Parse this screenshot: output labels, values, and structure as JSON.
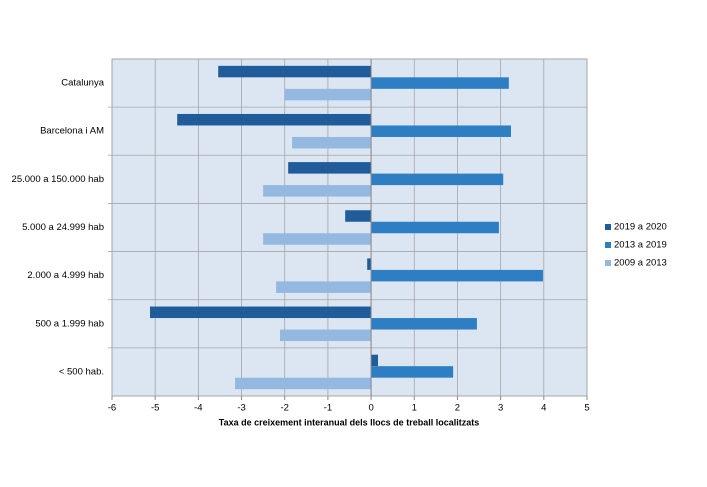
{
  "chart_data": {
    "type": "bar",
    "orientation": "horizontal",
    "x_label": "Taxa de creixement interanual dels llocs de treball localitzats",
    "categories": [
      "Catalunya",
      "Barcelona i AM",
      "25.000 a 150.000 hab",
      "5.000 a 24.999 hab",
      "2.000 a 4.999 hab",
      "500 a 1.999 hab",
      "< 500 hab."
    ],
    "series": [
      {
        "name": "2019 a 2020",
        "color": "#1f5c99",
        "values": [
          -3.54,
          -4.49,
          -1.92,
          -0.6,
          -0.09,
          -5.12,
          0.16
        ]
      },
      {
        "name": "2013 a 2019",
        "color": "#2e7ec4",
        "values": [
          3.19,
          3.24,
          3.06,
          2.96,
          3.98,
          2.45,
          1.9
        ]
      },
      {
        "name": "2009 a 2013",
        "color": "#95b8e0",
        "values": [
          -2.01,
          -1.83,
          -2.5,
          -2.5,
          -2.2,
          -2.11,
          -3.15
        ]
      }
    ],
    "xlim": [
      -6,
      5
    ],
    "xticks": [
      -6,
      -5,
      -4,
      -3,
      -2,
      -1,
      0,
      1,
      2,
      3,
      4,
      5
    ],
    "grid": true,
    "legend": "right"
  }
}
